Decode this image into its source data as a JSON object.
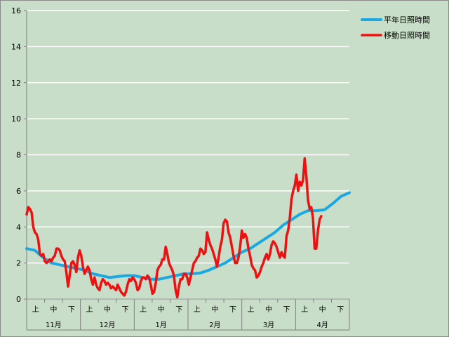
{
  "chart_data": {
    "type": "line",
    "ylim": [
      0,
      16
    ],
    "yticks": [
      0,
      2,
      4,
      6,
      8,
      10,
      12,
      14,
      16
    ],
    "grid": true,
    "legend_position": "top-right",
    "x_index_range": [
      0,
      180
    ],
    "period_ticks": [
      "上",
      "中",
      "下",
      "上",
      "中",
      "下",
      "上",
      "中",
      "下",
      "上",
      "中",
      "下",
      "上",
      "中",
      "下",
      "上",
      "中",
      "下"
    ],
    "months": [
      "11月",
      "12月",
      "1月",
      "2月",
      "3月",
      "4月"
    ],
    "colors": {
      "normal": "#1ca8e0",
      "moving": "#ee1111",
      "grid": "#ffffff",
      "plot_bg": "#c8dec8"
    },
    "series": [
      {
        "name": "平年日照時間",
        "points": [
          [
            0,
            2.8
          ],
          [
            5,
            2.7
          ],
          [
            10,
            2.3
          ],
          [
            15,
            2.0
          ],
          [
            20,
            1.9
          ],
          [
            25,
            1.8
          ],
          [
            30,
            1.7
          ],
          [
            35,
            1.6
          ],
          [
            40,
            1.4
          ],
          [
            45,
            1.3
          ],
          [
            50,
            1.2
          ],
          [
            55,
            1.25
          ],
          [
            60,
            1.3
          ],
          [
            65,
            1.3
          ],
          [
            70,
            1.2
          ],
          [
            75,
            1.1
          ],
          [
            80,
            1.1
          ],
          [
            85,
            1.2
          ],
          [
            90,
            1.3
          ],
          [
            95,
            1.4
          ],
          [
            100,
            1.4
          ],
          [
            105,
            1.45
          ],
          [
            110,
            1.6
          ],
          [
            115,
            1.8
          ],
          [
            120,
            2.0
          ],
          [
            125,
            2.3
          ],
          [
            130,
            2.6
          ],
          [
            135,
            2.8
          ],
          [
            140,
            3.1
          ],
          [
            145,
            3.4
          ],
          [
            150,
            3.7
          ],
          [
            155,
            4.1
          ],
          [
            160,
            4.4
          ],
          [
            165,
            4.7
          ],
          [
            170,
            4.9
          ],
          [
            175,
            4.9
          ],
          [
            180,
            4.95
          ],
          [
            185,
            5.3
          ],
          [
            190,
            5.7
          ],
          [
            195,
            5.9
          ]
        ]
      },
      {
        "name": "移動日照時間",
        "points": [
          [
            0,
            4.7
          ],
          [
            1,
            5.1
          ],
          [
            2,
            5.0
          ],
          [
            3,
            4.8
          ],
          [
            4,
            4.0
          ],
          [
            5,
            3.7
          ],
          [
            6,
            3.6
          ],
          [
            7,
            3.3
          ],
          [
            8,
            2.5
          ],
          [
            9,
            2.4
          ],
          [
            10,
            2.5
          ],
          [
            11,
            2.1
          ],
          [
            12,
            2.0
          ],
          [
            13,
            2.1
          ],
          [
            14,
            2.2
          ],
          [
            15,
            2.1
          ],
          [
            16,
            2.3
          ],
          [
            17,
            2.4
          ],
          [
            18,
            2.8
          ],
          [
            19,
            2.8
          ],
          [
            20,
            2.7
          ],
          [
            21,
            2.4
          ],
          [
            22,
            2.2
          ],
          [
            23,
            2.1
          ],
          [
            24,
            1.5
          ],
          [
            25,
            0.7
          ],
          [
            26,
            1.3
          ],
          [
            27,
            2.0
          ],
          [
            28,
            2.1
          ],
          [
            29,
            1.9
          ],
          [
            30,
            1.5
          ],
          [
            31,
            2.3
          ],
          [
            32,
            2.7
          ],
          [
            33,
            2.4
          ],
          [
            34,
            1.8
          ],
          [
            35,
            1.4
          ],
          [
            36,
            1.6
          ],
          [
            37,
            1.8
          ],
          [
            38,
            1.6
          ],
          [
            39,
            1.1
          ],
          [
            40,
            0.8
          ],
          [
            41,
            1.2
          ],
          [
            42,
            0.8
          ],
          [
            43,
            0.6
          ],
          [
            44,
            0.5
          ],
          [
            45,
            0.9
          ],
          [
            46,
            1.1
          ],
          [
            47,
            1.0
          ],
          [
            48,
            0.8
          ],
          [
            49,
            0.9
          ],
          [
            50,
            0.8
          ],
          [
            51,
            0.6
          ],
          [
            52,
            0.7
          ],
          [
            53,
            0.6
          ],
          [
            54,
            0.5
          ],
          [
            55,
            0.8
          ],
          [
            56,
            0.6
          ],
          [
            57,
            0.4
          ],
          [
            58,
            0.3
          ],
          [
            59,
            0.2
          ],
          [
            60,
            0.4
          ],
          [
            61,
            0.8
          ],
          [
            62,
            1.1
          ],
          [
            63,
            1.0
          ],
          [
            64,
            1.2
          ],
          [
            65,
            1.1
          ],
          [
            66,
            0.9
          ],
          [
            67,
            0.5
          ],
          [
            68,
            0.6
          ],
          [
            69,
            1.0
          ],
          [
            70,
            1.2
          ],
          [
            71,
            1.2
          ],
          [
            72,
            1.1
          ],
          [
            73,
            1.3
          ],
          [
            74,
            1.2
          ],
          [
            75,
            0.8
          ],
          [
            76,
            0.3
          ],
          [
            77,
            0.4
          ],
          [
            78,
            0.9
          ],
          [
            79,
            1.6
          ],
          [
            80,
            1.8
          ],
          [
            81,
            1.9
          ],
          [
            82,
            2.2
          ],
          [
            83,
            2.2
          ],
          [
            84,
            2.9
          ],
          [
            85,
            2.5
          ],
          [
            86,
            2.0
          ],
          [
            87,
            1.8
          ],
          [
            88,
            1.6
          ],
          [
            89,
            1.3
          ],
          [
            90,
            0.5
          ],
          [
            91,
            0.1
          ],
          [
            92,
            0.7
          ],
          [
            93,
            1.1
          ],
          [
            94,
            1.1
          ],
          [
            95,
            1.4
          ],
          [
            96,
            1.4
          ],
          [
            97,
            1.2
          ],
          [
            98,
            0.8
          ],
          [
            99,
            1.2
          ],
          [
            100,
            1.6
          ],
          [
            101,
            2.0
          ],
          [
            102,
            2.1
          ],
          [
            103,
            2.3
          ],
          [
            104,
            2.4
          ],
          [
            105,
            2.8
          ],
          [
            106,
            2.7
          ],
          [
            107,
            2.5
          ],
          [
            108,
            2.6
          ],
          [
            109,
            3.7
          ],
          [
            110,
            3.3
          ],
          [
            111,
            3.0
          ],
          [
            112,
            2.8
          ],
          [
            113,
            2.5
          ],
          [
            114,
            2.2
          ],
          [
            115,
            1.8
          ],
          [
            116,
            2.3
          ],
          [
            117,
            2.9
          ],
          [
            118,
            3.3
          ],
          [
            119,
            4.2
          ],
          [
            120,
            4.4
          ],
          [
            121,
            4.3
          ],
          [
            122,
            3.7
          ],
          [
            123,
            3.4
          ],
          [
            124,
            2.9
          ],
          [
            125,
            2.4
          ],
          [
            126,
            2.0
          ],
          [
            127,
            2.0
          ],
          [
            128,
            2.3
          ],
          [
            129,
            2.9
          ],
          [
            130,
            3.8
          ],
          [
            131,
            3.4
          ],
          [
            132,
            3.6
          ],
          [
            133,
            3.4
          ],
          [
            134,
            2.8
          ],
          [
            135,
            2.4
          ],
          [
            136,
            1.9
          ],
          [
            137,
            1.7
          ],
          [
            138,
            1.6
          ],
          [
            139,
            1.2
          ],
          [
            140,
            1.3
          ],
          [
            141,
            1.5
          ],
          [
            142,
            1.8
          ],
          [
            143,
            2.0
          ],
          [
            144,
            2.3
          ],
          [
            145,
            2.5
          ],
          [
            146,
            2.2
          ],
          [
            147,
            2.5
          ],
          [
            148,
            3.0
          ],
          [
            149,
            3.2
          ],
          [
            150,
            3.1
          ],
          [
            151,
            2.9
          ],
          [
            152,
            2.6
          ],
          [
            153,
            2.3
          ],
          [
            154,
            2.6
          ],
          [
            155,
            2.4
          ],
          [
            156,
            2.3
          ],
          [
            157,
            3.5
          ],
          [
            158,
            3.8
          ],
          [
            159,
            4.5
          ],
          [
            160,
            5.5
          ],
          [
            161,
            6.0
          ],
          [
            162,
            6.3
          ],
          [
            163,
            6.9
          ],
          [
            164,
            6.0
          ],
          [
            165,
            6.5
          ],
          [
            166,
            6.3
          ],
          [
            167,
            6.6
          ],
          [
            168,
            7.8
          ],
          [
            169,
            6.8
          ],
          [
            170,
            5.5
          ],
          [
            171,
            5.0
          ],
          [
            172,
            5.1
          ],
          [
            173,
            4.5
          ],
          [
            174,
            2.8
          ],
          [
            175,
            2.8
          ],
          [
            176,
            3.8
          ],
          [
            177,
            4.4
          ],
          [
            178,
            4.6
          ]
        ]
      }
    ]
  }
}
